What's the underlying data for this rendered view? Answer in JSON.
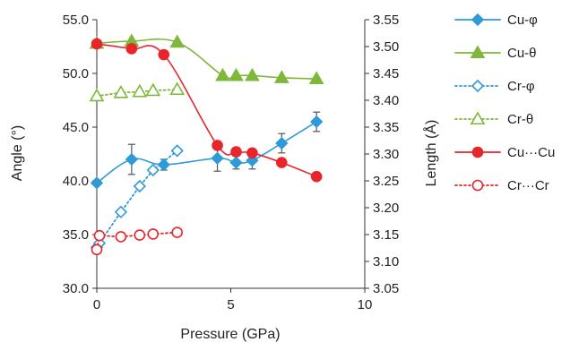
{
  "chart_data": {
    "type": "scatter",
    "xlabel": "Pressure (GPa)",
    "ylabel_left": "Angle (°)",
    "ylabel_right": "Length (Å)",
    "x_range": [
      0,
      10
    ],
    "x_ticks": [
      "0",
      "5",
      "10"
    ],
    "y_left_range": [
      30,
      55
    ],
    "y_left_ticks": [
      "30.0",
      "35.0",
      "40.0",
      "45.0",
      "50.0",
      "55.0"
    ],
    "y_right_range": [
      3.05,
      3.55
    ],
    "y_right_ticks": [
      "3.05",
      "3.10",
      "3.15",
      "3.20",
      "3.25",
      "3.30",
      "3.35",
      "3.40",
      "3.45",
      "3.50",
      "3.55"
    ],
    "legend_position": "right",
    "series": [
      {
        "name": "Cu-φ",
        "axis": "left",
        "color": "#2E9AD8",
        "marker": "diamond-filled",
        "line": "solid-smooth",
        "x": [
          0.0,
          1.3,
          2.5,
          4.5,
          5.2,
          5.8,
          6.9,
          8.2
        ],
        "y": [
          39.8,
          42.0,
          41.5,
          42.1,
          41.7,
          41.9,
          43.5,
          45.5
        ],
        "err": [
          0.0,
          1.4,
          0.5,
          1.2,
          0.6,
          0.8,
          0.9,
          0.9
        ]
      },
      {
        "name": "Cu-θ",
        "axis": "left",
        "color": "#7DB83A",
        "marker": "triangle-filled",
        "line": "solid-smooth",
        "x": [
          0.0,
          1.3,
          3.0,
          4.7,
          5.2,
          5.8,
          6.9,
          8.2
        ],
        "y": [
          52.8,
          53.0,
          52.9,
          49.8,
          49.8,
          49.8,
          49.6,
          49.5
        ],
        "err": []
      },
      {
        "name": "Cr-φ",
        "axis": "left",
        "color": "#2E9AD8",
        "marker": "diamond-open",
        "line": "dotted",
        "x": [
          0.0,
          0.1,
          0.9,
          1.6,
          2.1,
          3.0
        ],
        "y": [
          33.8,
          34.2,
          37.1,
          39.5,
          41.0,
          42.8
        ],
        "err": []
      },
      {
        "name": "Cr-θ",
        "axis": "left",
        "color": "#7DB83A",
        "marker": "triangle-open",
        "line": "dotted",
        "x": [
          0.0,
          0.9,
          1.6,
          2.1,
          3.0
        ],
        "y": [
          47.9,
          48.2,
          48.3,
          48.4,
          48.5
        ],
        "err": []
      },
      {
        "name": "Cu···Cu",
        "axis": "right",
        "color": "#E8252A",
        "marker": "circle-filled",
        "line": "solid-smooth",
        "x": [
          0.0,
          1.3,
          2.5,
          4.5,
          5.2,
          5.8,
          6.9,
          8.2
        ],
        "y": [
          3.505,
          3.496,
          3.485,
          3.316,
          3.304,
          3.302,
          3.284,
          3.258
        ],
        "err": []
      },
      {
        "name": "Cr···Cr",
        "axis": "right",
        "color": "#E8252A",
        "marker": "circle-open",
        "line": "dotted",
        "x": [
          0.0,
          0.1,
          0.9,
          1.6,
          2.1,
          3.0
        ],
        "y": [
          3.122,
          3.148,
          3.146,
          3.149,
          3.151,
          3.154
        ],
        "err": []
      }
    ]
  }
}
